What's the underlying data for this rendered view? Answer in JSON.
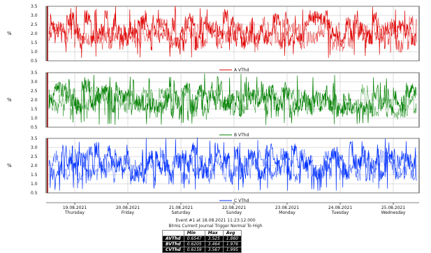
{
  "chart_data": {
    "type": "line",
    "ylabel": "%",
    "ylim": [
      0.5,
      3.5
    ],
    "yticks": [
      "0.5",
      "1.0",
      "1.5",
      "2.0",
      "2.5",
      "3.0",
      "3.5"
    ],
    "grid": true,
    "x_ticks": [
      {
        "date": "19.08.2021",
        "day": "Thursday"
      },
      {
        "date": "20.08.2021",
        "day": "Friday"
      },
      {
        "date": "21.08.2021",
        "day": "Saturday"
      },
      {
        "date": "22.08.2021",
        "day": "Sunday"
      },
      {
        "date": "23.08.2021",
        "day": "Monday"
      },
      {
        "date": "24.08.2021",
        "day": "Tuesday"
      },
      {
        "date": "25.08.2021",
        "day": "Wednesday"
      }
    ],
    "x_range": [
      "2021-08-18 11:23",
      "2021-08-25 20:00"
    ],
    "series": [
      {
        "name": "A VThd",
        "color": "#e00000",
        "min": 0.6547,
        "max": 3.525,
        "avg": 1.86
      },
      {
        "name": "B VThd",
        "color": "#008000",
        "min": 0.6205,
        "max": 3.464,
        "avg": 1.976
      },
      {
        "name": "C VThd",
        "color": "#0030ff",
        "min": 0.6159,
        "max": 3.567,
        "avg": 1.995
      }
    ]
  },
  "event": {
    "line1": "Event #1 at 18.08.2021 11:23:12.000",
    "line2": "Blrms Current Journal Trigger Normal To High"
  },
  "stats_table": {
    "headers": [
      "",
      "Min",
      "Max",
      "Avg"
    ],
    "rows": [
      {
        "label": "AVThd",
        "min": "0.6547",
        "max": "3.525",
        "avg": "1.860"
      },
      {
        "label": "BVThd",
        "min": "0.6205",
        "max": "3.464",
        "avg": "1.976"
      },
      {
        "label": "CVThd",
        "min": "0.6159",
        "max": "3.567",
        "avg": "1.995"
      }
    ]
  }
}
